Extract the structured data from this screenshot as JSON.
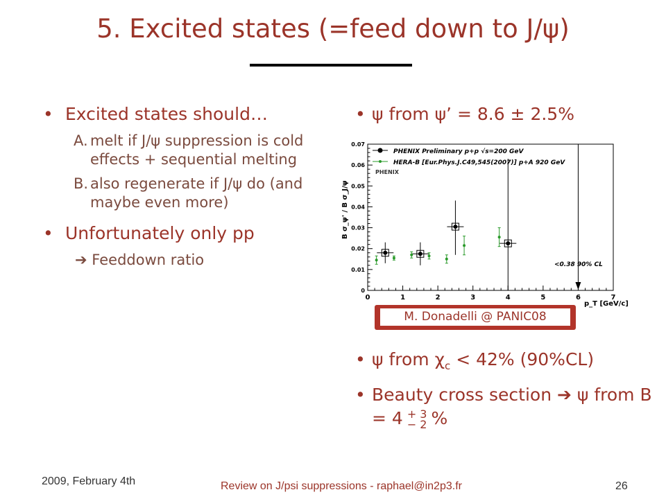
{
  "title": "5. Excited states (=feed down to J/ψ)",
  "left": {
    "bullet1": "Excited states should…",
    "sub_a_label": "A.",
    "sub_a_text": "melt if J/ψ suppression is cold effects + sequential melting",
    "sub_b_label": "B.",
    "sub_b_text": "also regenerate if J/ψ do (and maybe even more)",
    "bullet2": "Unfortunately only pp",
    "arrow_text": "Feeddown ratio"
  },
  "right": {
    "bullet1": "ψ from ψ’ = 8.6 ± 2.5%",
    "bullet2_pre": "ψ from χ",
    "bullet2_sub": "c",
    "bullet2_post": " < 42% (90%CL)",
    "bullet3_pre": "Beauty cross section",
    "bullet3_mid": " ψ from B = 4",
    "bullet3_plus": "+ 3",
    "bullet3_minus": "− 2",
    "bullet3_post": "%"
  },
  "badge": "M. Donadelli @ PANIC08",
  "footer": {
    "date": "2009, February 4th",
    "center": "Review on J/psi suppressions - raphael@in2p3.fr",
    "page": "26"
  },
  "colors": {
    "accent": "#9b3429",
    "phenix": "#000000",
    "herab": "#2a9a2a"
  },
  "chart_data": {
    "type": "scatter",
    "xlabel": "p_T [GeV/c]",
    "ylabel": "B σ_ψ' / B σ_J/ψ",
    "xlim": [
      0,
      7
    ],
    "ylim": [
      0,
      0.07
    ],
    "x_ticks": [
      "0",
      "1",
      "2",
      "3",
      "4",
      "5",
      "6",
      "7"
    ],
    "y_ticks": [
      "0",
      "0.01",
      "0.02",
      "0.03",
      "0.04",
      "0.05",
      "0.06",
      "0.07"
    ],
    "legend_position": "top-left",
    "series": [
      {
        "name": "PHENIX Preliminary p+p √s=200 GeV",
        "points": [
          {
            "x": 0.5,
            "y": 0.018,
            "lo": 0.013,
            "hi": 0.023
          },
          {
            "x": 1.5,
            "y": 0.0175,
            "lo": 0.012,
            "hi": 0.023
          },
          {
            "x": 2.5,
            "y": 0.0305,
            "lo": 0.017,
            "hi": 0.043
          },
          {
            "x": 4.0,
            "y": 0.0225,
            "lo": 0.0,
            "hi": 0.063
          }
        ]
      },
      {
        "name": "HERA-B [Eur.Phys.J.C49,545(2007)] p+A 920 GeV",
        "points": [
          {
            "x": 0.25,
            "y": 0.0145,
            "lo": 0.0125,
            "hi": 0.0165
          },
          {
            "x": 0.75,
            "y": 0.0155,
            "lo": 0.0145,
            "hi": 0.0165
          },
          {
            "x": 1.25,
            "y": 0.017,
            "lo": 0.0155,
            "hi": 0.0185
          },
          {
            "x": 1.75,
            "y": 0.0165,
            "lo": 0.015,
            "hi": 0.018
          },
          {
            "x": 2.25,
            "y": 0.015,
            "lo": 0.013,
            "hi": 0.017
          },
          {
            "x": 2.75,
            "y": 0.0215,
            "lo": 0.017,
            "hi": 0.026
          },
          {
            "x": 3.75,
            "y": 0.0255,
            "lo": 0.021,
            "hi": 0.03
          }
        ]
      }
    ],
    "limit": {
      "x": 6.0,
      "label": "<0.38  90% CL"
    },
    "logo": "PHENIX"
  }
}
